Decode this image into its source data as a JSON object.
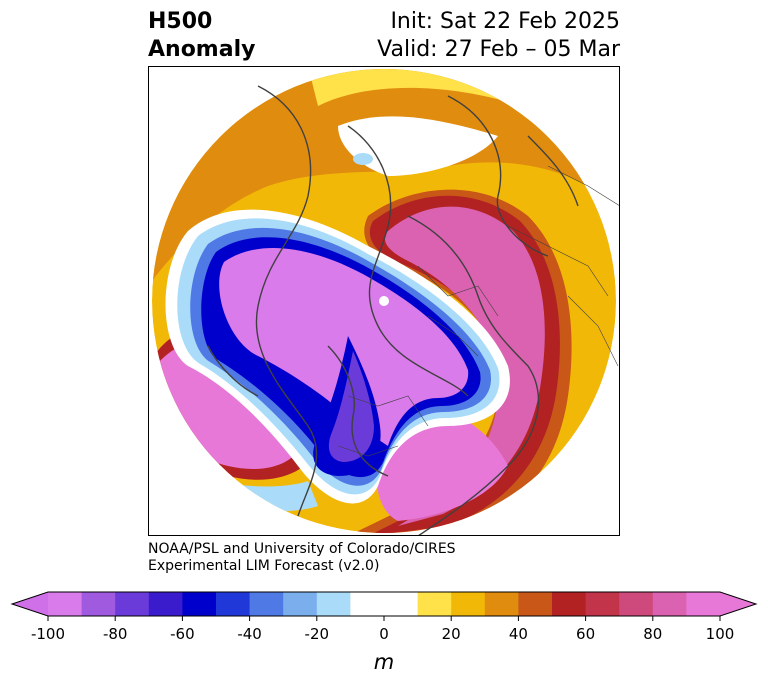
{
  "header": {
    "title_line1": "H500",
    "title_line2": "Anomaly",
    "init": "Init: Sat 22 Feb 2025",
    "valid": "Valid: 27 Feb – 05 Mar"
  },
  "credits": {
    "line1": "NOAA/PSL and University of Colorado/CIRES",
    "line2": "Experimental LIM Forecast (v2.0)"
  },
  "colorbar": {
    "unit": "m",
    "ticks": [
      "-100",
      "-80",
      "-60",
      "-40",
      "-20",
      "0",
      "20",
      "40",
      "60",
      "80",
      "100"
    ],
    "levels": [
      -100,
      -90,
      -80,
      -70,
      -60,
      -50,
      -40,
      -30,
      -20,
      -10,
      10,
      20,
      30,
      40,
      50,
      60,
      70,
      80,
      90,
      100
    ],
    "colors": [
      "#d97bea",
      "#a05ae0",
      "#6a3bd8",
      "#3b1ccc",
      "#0000cc",
      "#2138d8",
      "#4f79e4",
      "#7aaeed",
      "#aadcfa",
      "#ffffff",
      "#ffe14a",
      "#f2b807",
      "#e08c0e",
      "#c85718",
      "#b22222",
      "#c2344a",
      "#cf4a7c",
      "#db62b0",
      "#e778d8"
    ],
    "extend_low_color": "#d070e8",
    "extend_high_color": "#e878d8"
  },
  "map": {
    "projection": "north-polar-stereographic",
    "description_features": [
      "coastlines",
      "country-borders",
      "state-borders"
    ]
  }
}
